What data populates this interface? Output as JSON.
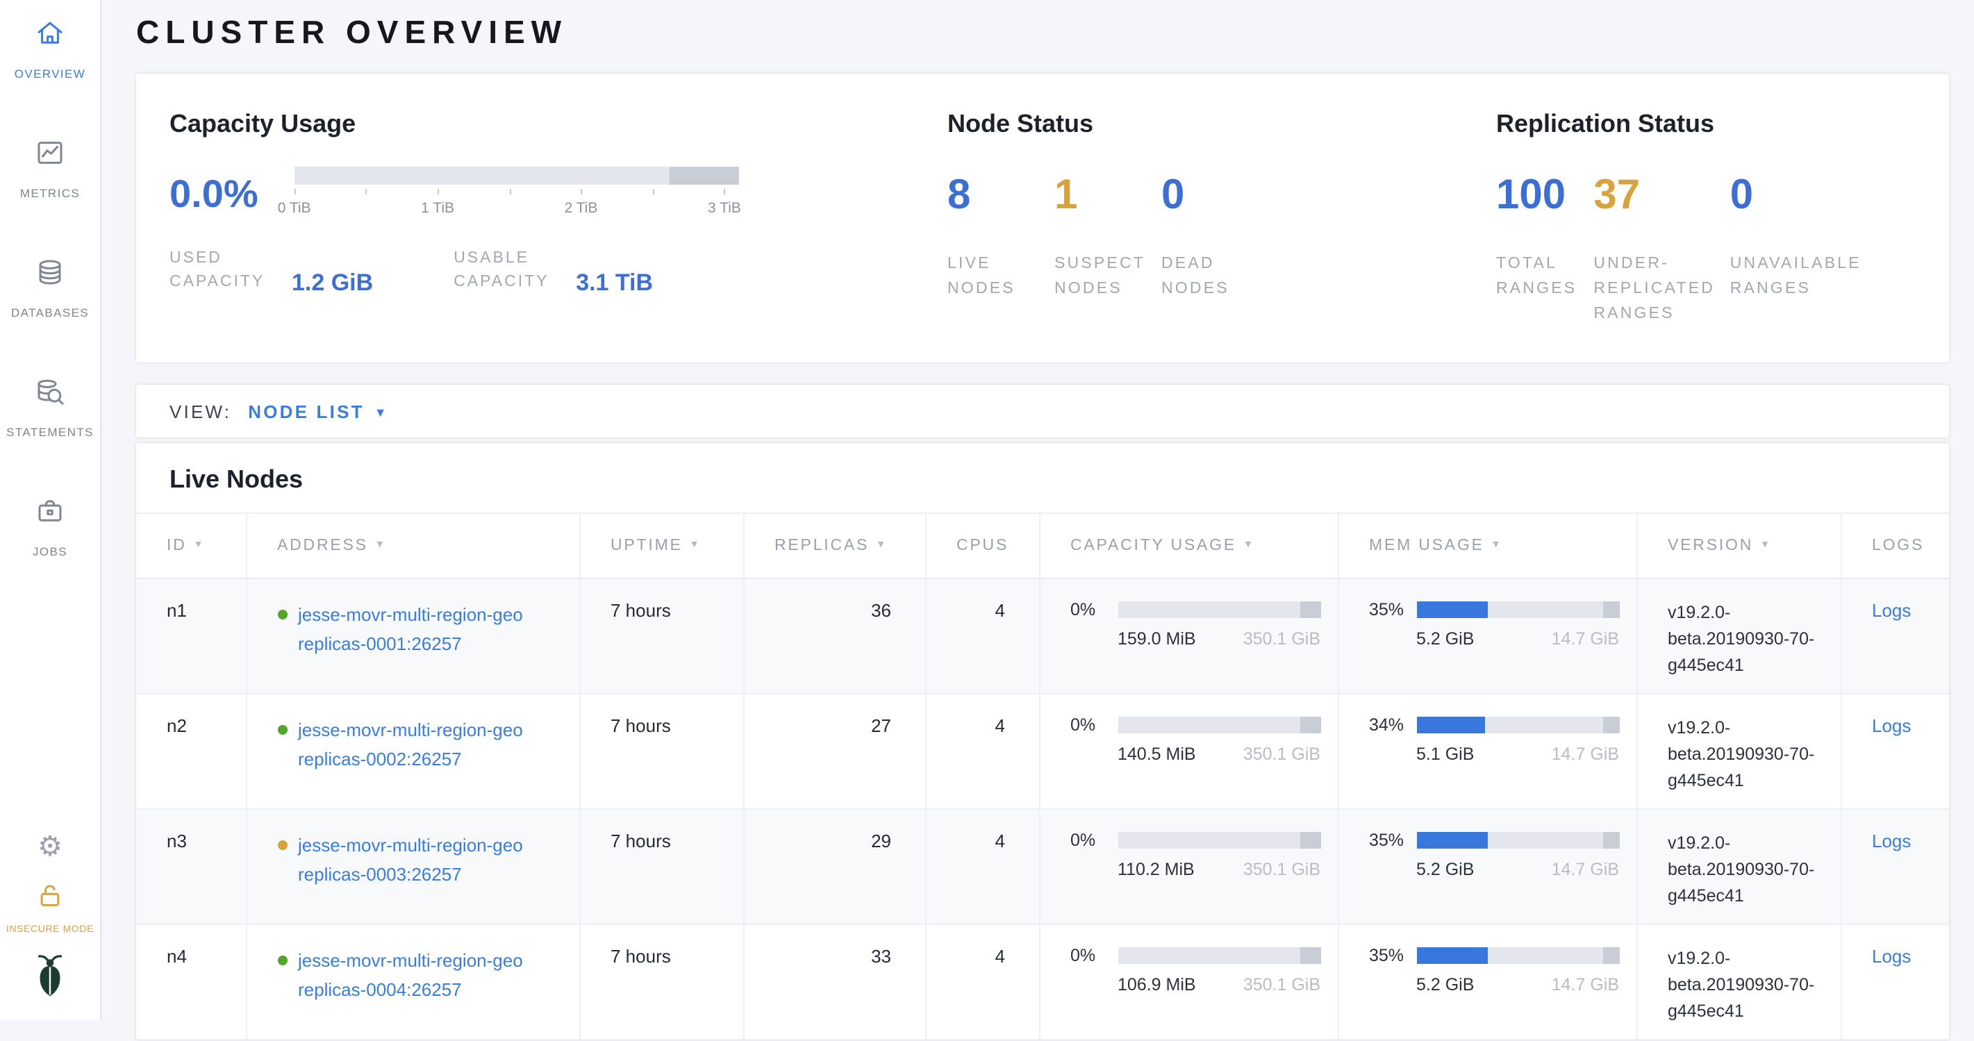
{
  "page_title": "CLUSTER OVERVIEW",
  "colors": {
    "accent_blue": "#3c6fd6",
    "link_blue": "#3a7de1",
    "warning_yellow": "#d7a33c",
    "label_gray": "#a2a7b0",
    "text_dark": "#242a35",
    "healthy_green": "#55a42a",
    "page_bg": "#f5f6f9",
    "bar_track": "#e3e6ec",
    "bar_other": "#c9cdd6"
  },
  "sidebar": {
    "items": [
      {
        "label": "OVERVIEW",
        "icon": "house-icon",
        "active": true
      },
      {
        "label": "METRICS",
        "icon": "chart-icon",
        "active": false
      },
      {
        "label": "DATABASES",
        "icon": "database-icon",
        "active": false
      },
      {
        "label": "STATEMENTS",
        "icon": "database-search-icon",
        "active": false
      },
      {
        "label": "JOBS",
        "icon": "briefcase-icon",
        "active": false
      }
    ],
    "gear_icon": "⚙",
    "insecure_label": "INSECURE MODE"
  },
  "summary": {
    "capacity": {
      "title": "Capacity Usage",
      "percent": "0.0%",
      "ticks": [
        "0 TiB",
        "1 TiB",
        "2 TiB",
        "3 TiB"
      ],
      "gauge": {
        "fill_percent": 0,
        "other_percent": 15.5
      },
      "used_label": "USED CAPACITY",
      "used_value": "1.2 GiB",
      "usable_label": "USABLE CAPACITY",
      "usable_value": "3.1 TiB"
    },
    "node_status": {
      "title": "Node Status",
      "stats": [
        {
          "value": "8",
          "label": "LIVE NODES",
          "color": "blue"
        },
        {
          "value": "1",
          "label": "SUSPECT NODES",
          "color": "yellow"
        },
        {
          "value": "0",
          "label": "DEAD NODES",
          "color": "blue"
        }
      ]
    },
    "replication": {
      "title": "Replication Status",
      "stats": [
        {
          "value": "100",
          "label": "TOTAL RANGES",
          "color": "blue"
        },
        {
          "value": "37",
          "label": "UNDER-REPLICATED RANGES",
          "color": "yellow"
        },
        {
          "value": "0",
          "label": "UNAVAILABLE RANGES",
          "color": "blue"
        }
      ]
    }
  },
  "view_bar": {
    "label": "VIEW:",
    "selected": "NODE LIST"
  },
  "live_nodes": {
    "title": "Live Nodes",
    "cap_other_percent": 10,
    "mem_other_percent": 8,
    "columns": [
      {
        "label": "ID",
        "sortable": true
      },
      {
        "label": "ADDRESS",
        "sortable": true
      },
      {
        "label": "UPTIME",
        "sortable": true
      },
      {
        "label": "REPLICAS",
        "sortable": true
      },
      {
        "label": "CPUS",
        "sortable": false
      },
      {
        "label": "CAPACITY USAGE",
        "sortable": true
      },
      {
        "label": "MEM USAGE",
        "sortable": true
      },
      {
        "label": "VERSION",
        "sortable": true
      },
      {
        "label": "LOGS",
        "sortable": false
      }
    ],
    "rows": [
      {
        "id": "n1",
        "status": "healthy",
        "address_line1": "jesse-movr-multi-region-geo",
        "address_line2": "replicas-0001:26257",
        "uptime": "7 hours",
        "replicas": "36",
        "cpus": "4",
        "capacity": {
          "percent": "0%",
          "fill_percent": 0,
          "used": "159.0 MiB",
          "total": "350.1 GiB"
        },
        "memory": {
          "percent": "35%",
          "fill_percent": 35,
          "used": "5.2 GiB",
          "total": "14.7 GiB"
        },
        "version": "v19.2.0-beta.20190930-70-g445ec41",
        "logs_label": "Logs"
      },
      {
        "id": "n2",
        "status": "healthy",
        "address_line1": "jesse-movr-multi-region-geo",
        "address_line2": "replicas-0002:26257",
        "uptime": "7 hours",
        "replicas": "27",
        "cpus": "4",
        "capacity": {
          "percent": "0%",
          "fill_percent": 0,
          "used": "140.5 MiB",
          "total": "350.1 GiB"
        },
        "memory": {
          "percent": "34%",
          "fill_percent": 34,
          "used": "5.1 GiB",
          "total": "14.7 GiB"
        },
        "version": "v19.2.0-beta.20190930-70-g445ec41",
        "logs_label": "Logs"
      },
      {
        "id": "n3",
        "status": "suspect",
        "address_line1": "jesse-movr-multi-region-geo",
        "address_line2": "replicas-0003:26257",
        "uptime": "7 hours",
        "replicas": "29",
        "cpus": "4",
        "capacity": {
          "percent": "0%",
          "fill_percent": 0,
          "used": "110.2 MiB",
          "total": "350.1 GiB"
        },
        "memory": {
          "percent": "35%",
          "fill_percent": 35,
          "used": "5.2 GiB",
          "total": "14.7 GiB"
        },
        "version": "v19.2.0-beta.20190930-70-g445ec41",
        "logs_label": "Logs"
      },
      {
        "id": "n4",
        "status": "healthy",
        "address_line1": "jesse-movr-multi-region-geo",
        "address_line2": "replicas-0004:26257",
        "uptime": "7 hours",
        "replicas": "33",
        "cpus": "4",
        "capacity": {
          "percent": "0%",
          "fill_percent": 0,
          "used": "106.9 MiB",
          "total": "350.1 GiB"
        },
        "memory": {
          "percent": "35%",
          "fill_percent": 35,
          "used": "5.2 GiB",
          "total": "14.7 GiB"
        },
        "version": "v19.2.0-beta.20190930-70-g445ec41",
        "logs_label": "Logs"
      }
    ]
  }
}
